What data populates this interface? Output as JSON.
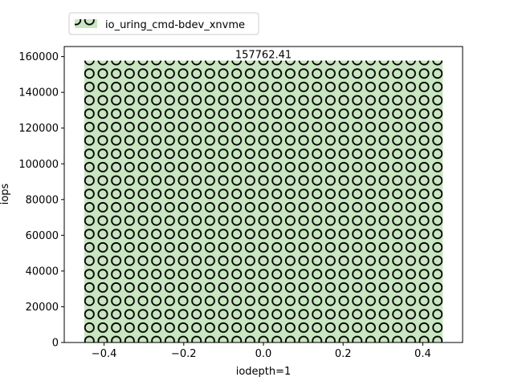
{
  "chart_data": {
    "type": "bar",
    "categories": [
      "0"
    ],
    "x": [
      0
    ],
    "series": [
      {
        "name": "io_uring_cmd-bdev_xnvme",
        "values": [
          157762.41
        ],
        "color": "#c8e6c0",
        "hatch": "circles"
      }
    ],
    "bar_width": 0.9,
    "data_labels": [
      "157762.41"
    ],
    "xlabel": "iodepth=1",
    "ylabel": "iops",
    "xlim": [
      -0.5,
      0.5
    ],
    "ylim": [
      0,
      165657
    ],
    "xticks": [
      -0.4,
      -0.2,
      0.0,
      0.2,
      0.4
    ],
    "xtick_labels": [
      "−0.4",
      "−0.2",
      "0.0",
      "0.2",
      "0.4"
    ],
    "yticks": [
      0,
      20000,
      40000,
      60000,
      80000,
      100000,
      120000,
      140000,
      160000
    ],
    "ytick_labels": [
      "0",
      "20000",
      "40000",
      "60000",
      "80000",
      "100000",
      "120000",
      "140000",
      "160000"
    ],
    "grid": false,
    "legend_position": "upper-left-outside"
  }
}
